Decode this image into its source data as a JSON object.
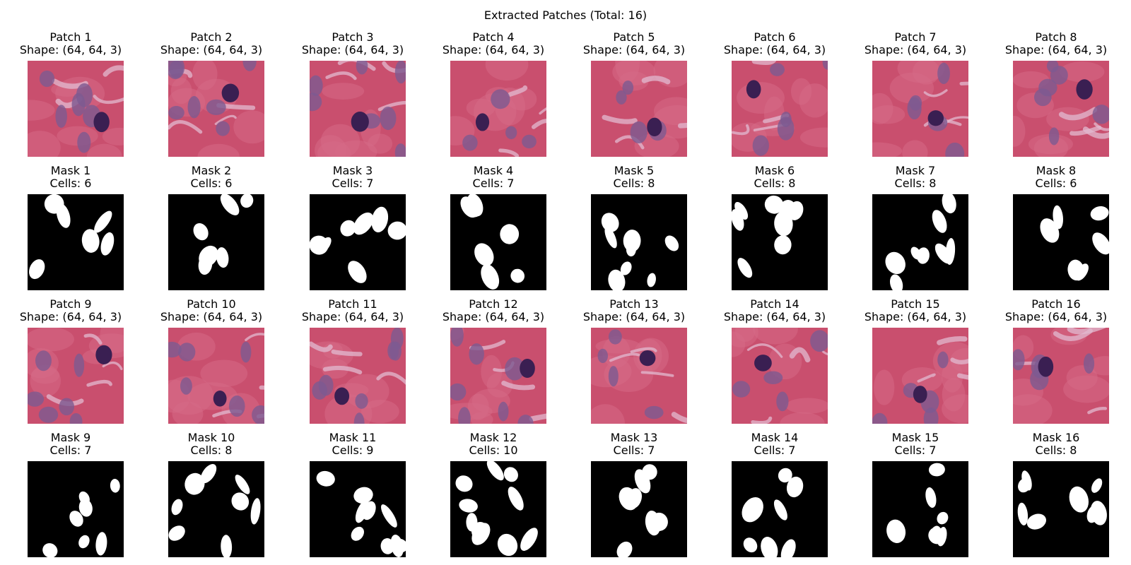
{
  "title": "Extracted Patches (Total: 16)",
  "colors": {
    "tissue_base": "#c94f6e",
    "tissue_pink": "#d66a87",
    "tissue_pale": "#e2b9d0",
    "nucleus_light": "#7d5a91",
    "nucleus_dark": "#3a1f52",
    "mask_bg": "#000000",
    "mask_fg": "#ffffff"
  },
  "rows": [
    {
      "kind": "patch",
      "items": [
        {
          "title": "Patch 1",
          "subtitle": "Shape: (64, 64, 3)"
        },
        {
          "title": "Patch 2",
          "subtitle": "Shape: (64, 64, 3)"
        },
        {
          "title": "Patch 3",
          "subtitle": "Shape: (64, 64, 3)"
        },
        {
          "title": "Patch 4",
          "subtitle": "Shape: (64, 64, 3)"
        },
        {
          "title": "Patch 5",
          "subtitle": "Shape: (64, 64, 3)"
        },
        {
          "title": "Patch 6",
          "subtitle": "Shape: (64, 64, 3)"
        },
        {
          "title": "Patch 7",
          "subtitle": "Shape: (64, 64, 3)"
        },
        {
          "title": "Patch 8",
          "subtitle": "Shape: (64, 64, 3)"
        }
      ]
    },
    {
      "kind": "mask",
      "items": [
        {
          "title": "Mask 1",
          "subtitle": "Cells: 6"
        },
        {
          "title": "Mask 2",
          "subtitle": "Cells: 6"
        },
        {
          "title": "Mask 3",
          "subtitle": "Cells: 7"
        },
        {
          "title": "Mask 4",
          "subtitle": "Cells: 7"
        },
        {
          "title": "Mask 5",
          "subtitle": "Cells: 8"
        },
        {
          "title": "Mask 6",
          "subtitle": "Cells: 8"
        },
        {
          "title": "Mask 7",
          "subtitle": "Cells: 8"
        },
        {
          "title": "Mask 8",
          "subtitle": "Cells: 6"
        }
      ]
    },
    {
      "kind": "patch",
      "items": [
        {
          "title": "Patch 9",
          "subtitle": "Shape: (64, 64, 3)"
        },
        {
          "title": "Patch 10",
          "subtitle": "Shape: (64, 64, 3)"
        },
        {
          "title": "Patch 11",
          "subtitle": "Shape: (64, 64, 3)"
        },
        {
          "title": "Patch 12",
          "subtitle": "Shape: (64, 64, 3)"
        },
        {
          "title": "Patch 13",
          "subtitle": "Shape: (64, 64, 3)"
        },
        {
          "title": "Patch 14",
          "subtitle": "Shape: (64, 64, 3)"
        },
        {
          "title": "Patch 15",
          "subtitle": "Shape: (64, 64, 3)"
        },
        {
          "title": "Patch 16",
          "subtitle": "Shape: (64, 64, 3)"
        }
      ]
    },
    {
      "kind": "mask",
      "items": [
        {
          "title": "Mask 9",
          "subtitle": "Cells: 7"
        },
        {
          "title": "Mask 10",
          "subtitle": "Cells: 8"
        },
        {
          "title": "Mask 11",
          "subtitle": "Cells: 9"
        },
        {
          "title": "Mask 12",
          "subtitle": "Cells: 10"
        },
        {
          "title": "Mask 13",
          "subtitle": "Cells: 7"
        },
        {
          "title": "Mask 14",
          "subtitle": "Cells: 7"
        },
        {
          "title": "Mask 15",
          "subtitle": "Cells: 7"
        },
        {
          "title": "Mask 16",
          "subtitle": "Cells: 8"
        }
      ]
    }
  ]
}
